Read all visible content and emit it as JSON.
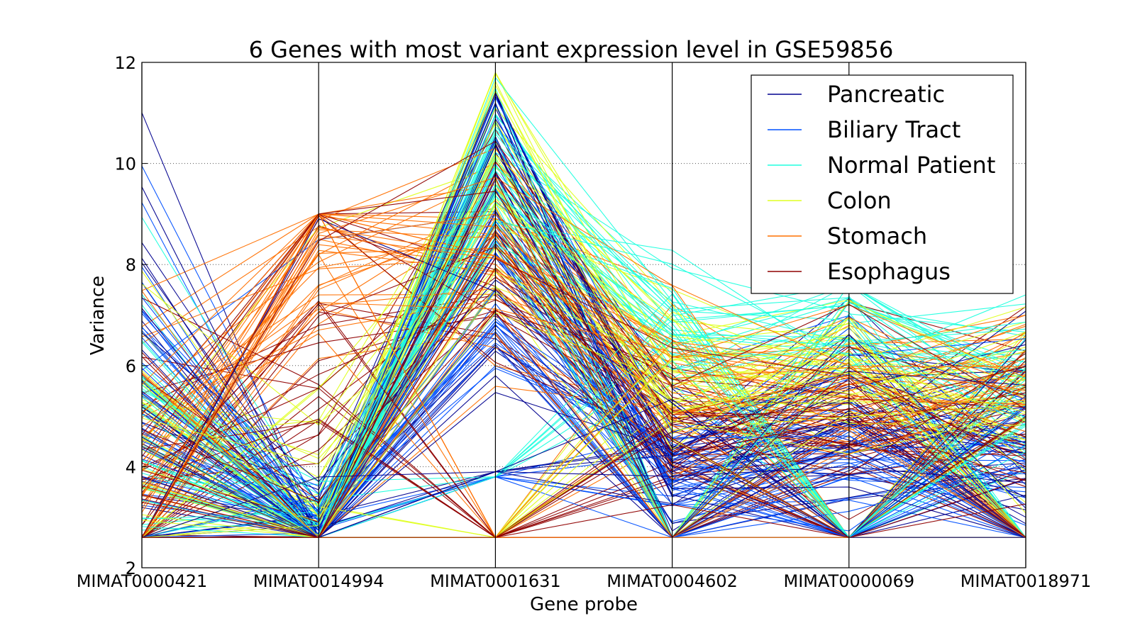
{
  "chart_data": {
    "type": "line",
    "subtype": "parallel-coordinates",
    "title": "6 Genes with most variant expression level in GSE59856",
    "xlabel": "Gene probe",
    "ylabel": "Variance",
    "categories": [
      "MIMAT0000421",
      "MIMAT0014994",
      "MIMAT0001631",
      "MIMAT0004602",
      "MIMAT0000069",
      "MIMAT0018971"
    ],
    "ylim": [
      2,
      12
    ],
    "yticks": [
      2,
      4,
      6,
      8,
      10,
      12
    ],
    "grid": "horizontal dotted",
    "legend_position": "top-right",
    "series": [
      {
        "name": "Pancreatic",
        "color": "#00008f",
        "profile": {
          "median": [
            5.0,
            2.6,
            9.2,
            4.0,
            4.8,
            4.6
          ],
          "spread": [
            2.2,
            0.6,
            1.6,
            0.8,
            0.9,
            1.0
          ],
          "range_min": [
            2.6,
            2.6,
            3.9,
            2.6,
            2.6,
            2.6
          ],
          "range_max": [
            11.1,
            9.0,
            11.4,
            6.6,
            7.6,
            7.3
          ]
        }
      },
      {
        "name": "Biliary Tract",
        "color": "#0050ff",
        "profile": {
          "median": [
            5.5,
            2.6,
            8.2,
            3.8,
            4.5,
            4.4
          ],
          "spread": [
            2.0,
            0.5,
            1.8,
            0.7,
            0.8,
            0.9
          ],
          "range_min": [
            2.6,
            2.6,
            3.8,
            2.6,
            2.6,
            2.6
          ],
          "range_max": [
            10.1,
            8.6,
            11.3,
            6.0,
            7.0,
            7.0
          ]
        }
      },
      {
        "name": "Normal Patient",
        "color": "#20ffdf",
        "profile": {
          "median": [
            4.8,
            2.8,
            9.6,
            6.8,
            7.0,
            5.6
          ],
          "spread": [
            1.2,
            0.4,
            1.0,
            0.7,
            0.5,
            0.8
          ],
          "range_min": [
            2.6,
            2.6,
            3.8,
            2.6,
            2.6,
            2.6
          ],
          "range_max": [
            9.0,
            4.8,
            11.7,
            8.3,
            7.6,
            7.4
          ]
        }
      },
      {
        "name": "Colon",
        "color": "#dfff20",
        "profile": {
          "median": [
            4.5,
            3.0,
            9.3,
            5.8,
            6.0,
            5.2
          ],
          "spread": [
            1.2,
            1.4,
            1.4,
            0.8,
            0.8,
            1.0
          ],
          "range_min": [
            2.6,
            2.6,
            2.6,
            2.6,
            2.6,
            2.6
          ],
          "range_max": [
            8.0,
            9.1,
            11.8,
            8.2,
            7.3,
            7.2
          ]
        }
      },
      {
        "name": "Stomach",
        "color": "#ff7000",
        "profile": {
          "median": [
            4.2,
            8.3,
            8.4,
            5.6,
            5.8,
            5.8
          ],
          "spread": [
            1.1,
            1.2,
            1.2,
            0.8,
            0.8,
            0.8
          ],
          "range_min": [
            2.6,
            2.6,
            2.6,
            2.6,
            2.6,
            2.6
          ],
          "range_max": [
            7.5,
            9.0,
            11.0,
            7.6,
            7.2,
            7.0
          ]
        }
      },
      {
        "name": "Esophagus",
        "color": "#8f0000",
        "profile": {
          "median": [
            4.0,
            5.0,
            7.8,
            4.6,
            5.0,
            5.0
          ],
          "spread": [
            1.2,
            2.8,
            1.4,
            0.7,
            0.8,
            0.9
          ],
          "range_min": [
            2.6,
            2.6,
            2.6,
            2.6,
            2.6,
            2.6
          ],
          "range_max": [
            7.4,
            9.0,
            10.7,
            6.6,
            7.4,
            7.6
          ]
        }
      }
    ]
  }
}
